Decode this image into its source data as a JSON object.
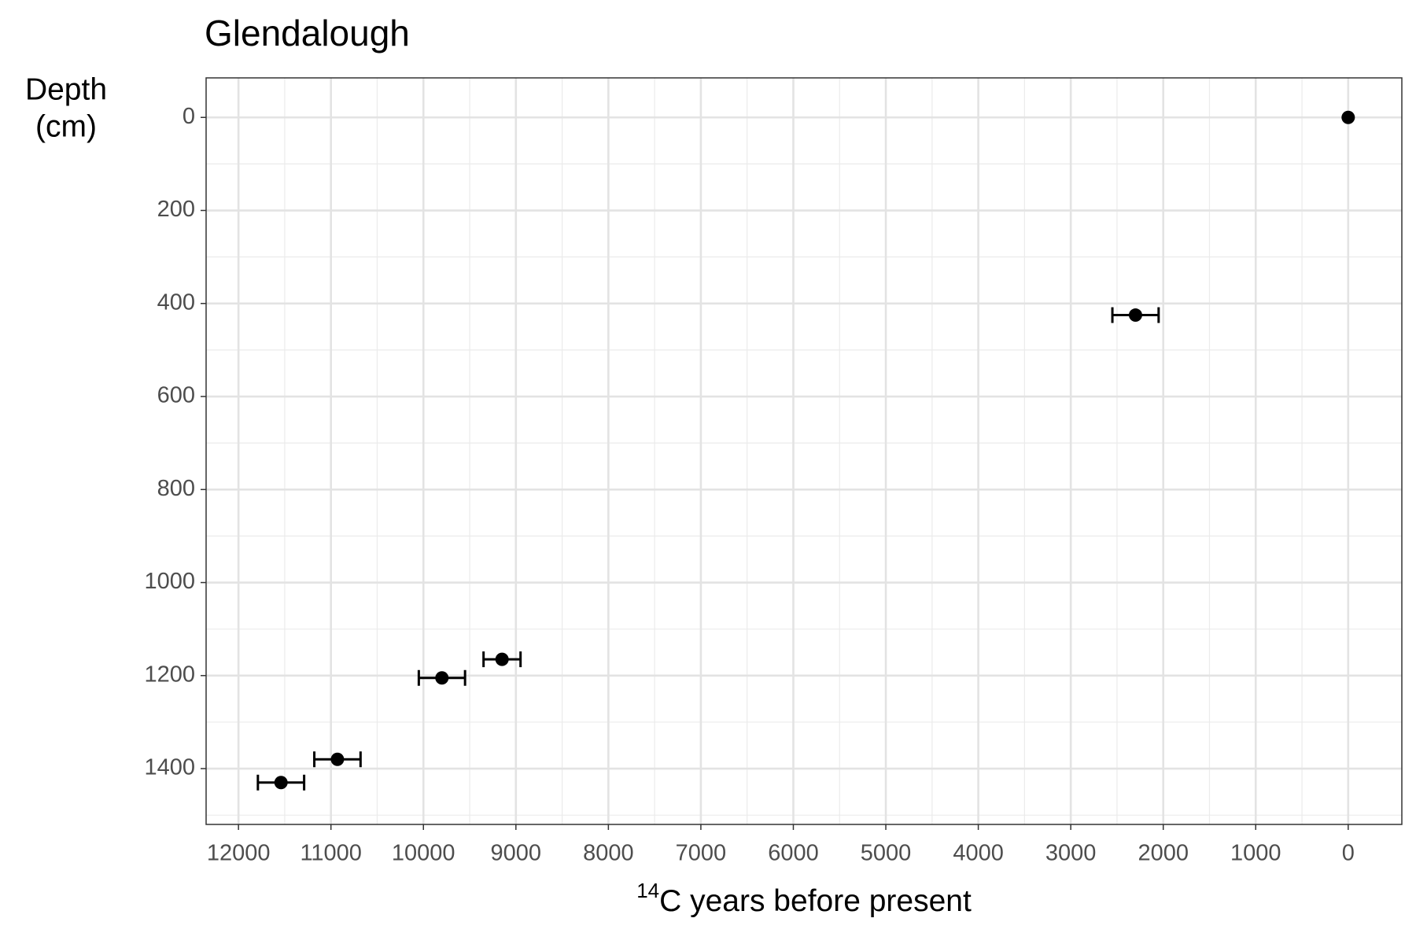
{
  "chart_data": {
    "type": "scatter",
    "title": "Glendalough",
    "xlabel": [
      "14",
      "C years before present"
    ],
    "ylabel": [
      "Depth",
      "(cm)"
    ],
    "x": [
      0,
      2300,
      9150,
      9800,
      10930,
      11540
    ],
    "y": [
      0,
      425,
      1165,
      1205,
      1380,
      1430
    ],
    "xerr": [
      0,
      250,
      200,
      250,
      250,
      250
    ],
    "color": "#000000",
    "xlim": [
      12350,
      -580
    ],
    "ylim": [
      1520,
      -85
    ],
    "xticks": [
      12000,
      11000,
      10000,
      9000,
      8000,
      7000,
      6000,
      5000,
      4000,
      3000,
      2000,
      1000,
      0
    ],
    "yticks": [
      0,
      200,
      400,
      600,
      800,
      1000,
      1200,
      1400
    ],
    "x_minor_ticks": [
      11500,
      10500,
      9500,
      8500,
      7500,
      6500,
      5500,
      4500,
      3500,
      2500,
      1500,
      500
    ],
    "y_minor_ticks": [
      100,
      300,
      500,
      700,
      900,
      1100,
      1300,
      1500
    ],
    "grid": true
  }
}
